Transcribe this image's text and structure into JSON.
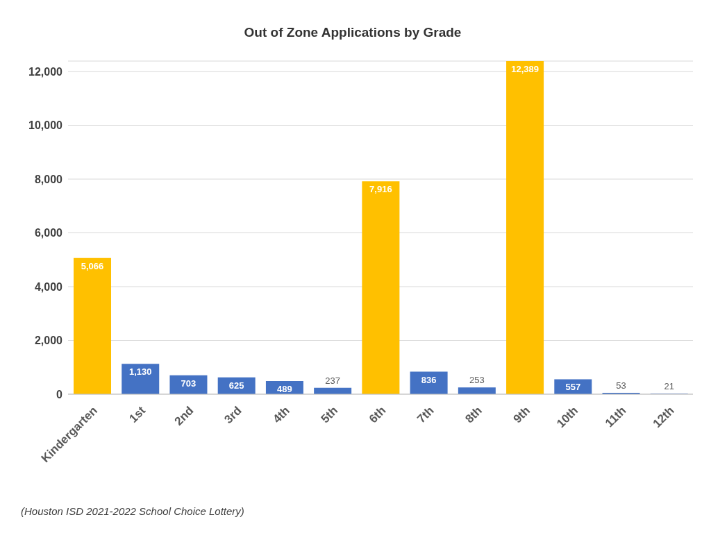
{
  "chart_data": {
    "type": "bar",
    "title": "Out of Zone Applications by Grade",
    "categories": [
      "Kindergarten",
      "1st",
      "2nd",
      "3rd",
      "4th",
      "5th",
      "6th",
      "7th",
      "8th",
      "9th",
      "10th",
      "11th",
      "12th"
    ],
    "values": [
      5066,
      1130,
      703,
      625,
      489,
      237,
      7916,
      836,
      253,
      12389,
      557,
      53,
      21
    ],
    "colors": [
      "#ffc000",
      "#4472c4",
      "#4472c4",
      "#4472c4",
      "#4472c4",
      "#4472c4",
      "#ffc000",
      "#4472c4",
      "#4472c4",
      "#ffc000",
      "#4472c4",
      "#4472c4",
      "#4472c4"
    ],
    "ylim": [
      0,
      12389
    ],
    "yticks": [
      {
        "value": 0,
        "label": "0"
      },
      {
        "value": 2000,
        "label": "2,000"
      },
      {
        "value": 4000,
        "label": "4,000"
      },
      {
        "value": 6000,
        "label": "6,000"
      },
      {
        "value": 8000,
        "label": "8,000"
      },
      {
        "value": 10000,
        "label": "10,000"
      },
      {
        "value": 12000,
        "label": "12,000"
      }
    ],
    "grid": "y",
    "value_labels": [
      "5,066",
      "1,130",
      "703",
      "625",
      "489",
      "237",
      "7,916",
      "836",
      "253",
      "12,389",
      "557",
      "53",
      "21"
    ],
    "annotations": [
      "(Houston ISD 2021-2022 School Choice Lottery)"
    ]
  }
}
